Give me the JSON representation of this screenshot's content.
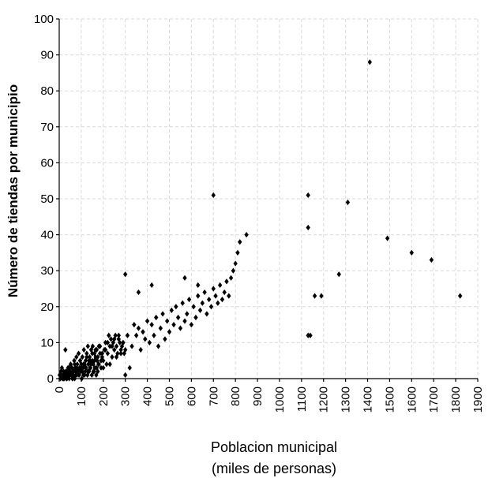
{
  "chart_data": {
    "type": "scatter",
    "title": "",
    "ylabel": "Número de tiendas por municipio",
    "xlabel_lines": [
      "Poblacion municipal",
      "(miles de personas)"
    ],
    "xlim": [
      0,
      1900
    ],
    "ylim": [
      0,
      100
    ],
    "x_ticks": [
      0,
      100,
      200,
      300,
      400,
      500,
      600,
      700,
      800,
      900,
      1000,
      1100,
      1200,
      1300,
      1400,
      1500,
      1600,
      1700,
      1800,
      1900
    ],
    "y_ticks": [
      0,
      10,
      20,
      30,
      40,
      50,
      60,
      70,
      80,
      90,
      100
    ],
    "grid": true,
    "legend": "none",
    "marker": "diamond",
    "marker_color": "#000000",
    "series": [
      {
        "x": [
          2,
          5,
          8,
          10,
          12,
          15,
          18,
          20,
          22,
          25,
          28,
          30,
          32,
          35,
          38,
          40,
          42,
          45,
          48,
          50,
          52,
          55,
          58,
          60,
          62,
          65,
          68,
          70,
          72,
          75,
          78,
          80,
          82,
          85,
          88,
          90,
          92,
          95,
          98,
          100,
          102,
          105,
          108,
          110,
          112,
          115,
          118,
          120,
          122,
          125,
          128,
          130,
          132,
          135,
          138,
          140,
          142,
          145,
          148,
          150,
          152,
          155,
          158,
          160,
          162,
          165,
          168,
          170,
          172,
          175,
          178,
          180,
          185,
          190,
          195,
          200,
          205,
          210,
          215,
          220,
          225,
          230,
          235,
          240,
          245,
          250,
          255,
          260,
          265,
          270,
          275,
          280,
          285,
          290,
          295,
          300,
          20,
          25,
          30,
          35,
          40,
          45,
          50,
          55,
          60,
          65,
          70,
          75,
          80,
          85,
          90,
          95,
          100,
          105,
          110,
          115,
          120,
          125,
          130,
          135,
          140,
          145,
          150,
          155,
          160,
          165,
          170,
          175,
          180,
          185,
          190,
          195,
          200,
          210,
          220,
          230,
          240,
          250,
          260,
          270,
          280,
          290,
          300,
          310,
          320,
          330,
          340,
          350,
          360,
          370,
          380,
          390,
          400,
          410,
          420,
          430,
          440,
          450,
          460,
          470,
          480,
          490,
          500,
          510,
          520,
          530,
          540,
          550,
          560,
          570,
          580,
          590,
          600,
          610,
          620,
          630,
          640,
          650,
          660,
          670,
          680,
          690,
          700,
          710,
          720,
          730,
          740,
          750,
          760,
          770,
          780,
          790,
          800,
          810,
          820,
          850,
          1130,
          1140,
          1160,
          1190,
          1270,
          1310,
          1410,
          1490,
          1600,
          1690,
          1820,
          300,
          360,
          420,
          570,
          630,
          700,
          1130,
          1130
        ],
        "y": [
          1,
          0,
          2,
          1,
          3,
          0,
          1,
          2,
          0,
          1,
          8,
          1,
          0,
          2,
          1,
          3,
          2,
          0,
          1,
          2,
          4,
          1,
          3,
          0,
          2,
          1,
          5,
          0,
          3,
          2,
          6,
          1,
          4,
          2,
          7,
          1,
          3,
          5,
          2,
          4,
          0,
          6,
          3,
          1,
          8,
          4,
          2,
          5,
          3,
          7,
          1,
          9,
          4,
          2,
          6,
          5,
          3,
          8,
          1,
          5,
          9,
          4,
          2,
          7,
          3,
          6,
          1,
          8,
          5,
          2,
          4,
          9,
          7,
          3,
          6,
          5,
          8,
          10,
          4,
          7,
          12,
          9,
          11,
          6,
          10,
          8,
          12,
          9,
          7,
          11,
          10,
          8,
          9,
          10,
          7,
          1,
          0,
          1,
          2,
          0,
          1,
          3,
          2,
          1,
          0,
          2,
          4,
          1,
          3,
          2,
          1,
          5,
          3,
          2,
          4,
          1,
          3,
          6,
          2,
          5,
          3,
          4,
          7,
          2,
          5,
          8,
          3,
          6,
          4,
          9,
          5,
          7,
          3,
          8,
          10,
          4,
          9,
          11,
          6,
          12,
          7,
          10,
          8,
          12,
          3,
          9,
          15,
          12,
          14,
          8,
          13,
          11,
          16,
          10,
          15,
          12,
          17,
          9,
          14,
          18,
          11,
          16,
          13,
          19,
          15,
          20,
          17,
          14,
          21,
          16,
          18,
          22,
          15,
          20,
          17,
          23,
          19,
          21,
          24,
          18,
          22,
          20,
          25,
          23,
          21,
          26,
          22,
          24,
          27,
          23,
          28,
          30,
          32,
          35,
          38,
          40,
          42,
          12,
          23,
          23,
          29,
          49,
          88,
          39,
          35,
          33,
          23,
          29,
          24,
          26,
          28,
          26,
          51,
          51,
          12
        ],
        "name": ""
      }
    ]
  }
}
